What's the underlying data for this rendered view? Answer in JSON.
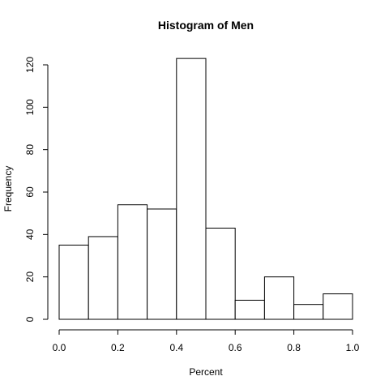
{
  "chart_data": {
    "type": "bar",
    "title": "Histogram of Men",
    "xlabel": "Percent",
    "ylabel": "Frequency",
    "bins": [
      {
        "x0": 0.0,
        "x1": 0.1,
        "count": 35
      },
      {
        "x0": 0.1,
        "x1": 0.2,
        "count": 39
      },
      {
        "x0": 0.2,
        "x1": 0.3,
        "count": 54
      },
      {
        "x0": 0.3,
        "x1": 0.4,
        "count": 52
      },
      {
        "x0": 0.4,
        "x1": 0.5,
        "count": 123
      },
      {
        "x0": 0.5,
        "x1": 0.6,
        "count": 43
      },
      {
        "x0": 0.6,
        "x1": 0.7,
        "count": 9
      },
      {
        "x0": 0.7,
        "x1": 0.8,
        "count": 20
      },
      {
        "x0": 0.8,
        "x1": 0.9,
        "count": 7
      },
      {
        "x0": 0.9,
        "x1": 1.0,
        "count": 12
      }
    ],
    "xlim": [
      0.0,
      1.0
    ],
    "ylim": [
      0,
      120
    ],
    "x_ticks": [
      {
        "value": 0.0,
        "label": "0.0"
      },
      {
        "value": 0.2,
        "label": "0.2"
      },
      {
        "value": 0.4,
        "label": "0.4"
      },
      {
        "value": 0.6,
        "label": "0.6"
      },
      {
        "value": 0.8,
        "label": "0.8"
      },
      {
        "value": 1.0,
        "label": "1.0"
      }
    ],
    "y_ticks": [
      {
        "value": 0,
        "label": "0"
      },
      {
        "value": 20,
        "label": "20"
      },
      {
        "value": 40,
        "label": "40"
      },
      {
        "value": 60,
        "label": "60"
      },
      {
        "value": 80,
        "label": "80"
      },
      {
        "value": 100,
        "label": "100"
      },
      {
        "value": 120,
        "label": "120"
      }
    ],
    "grid": false,
    "legend": "none"
  }
}
